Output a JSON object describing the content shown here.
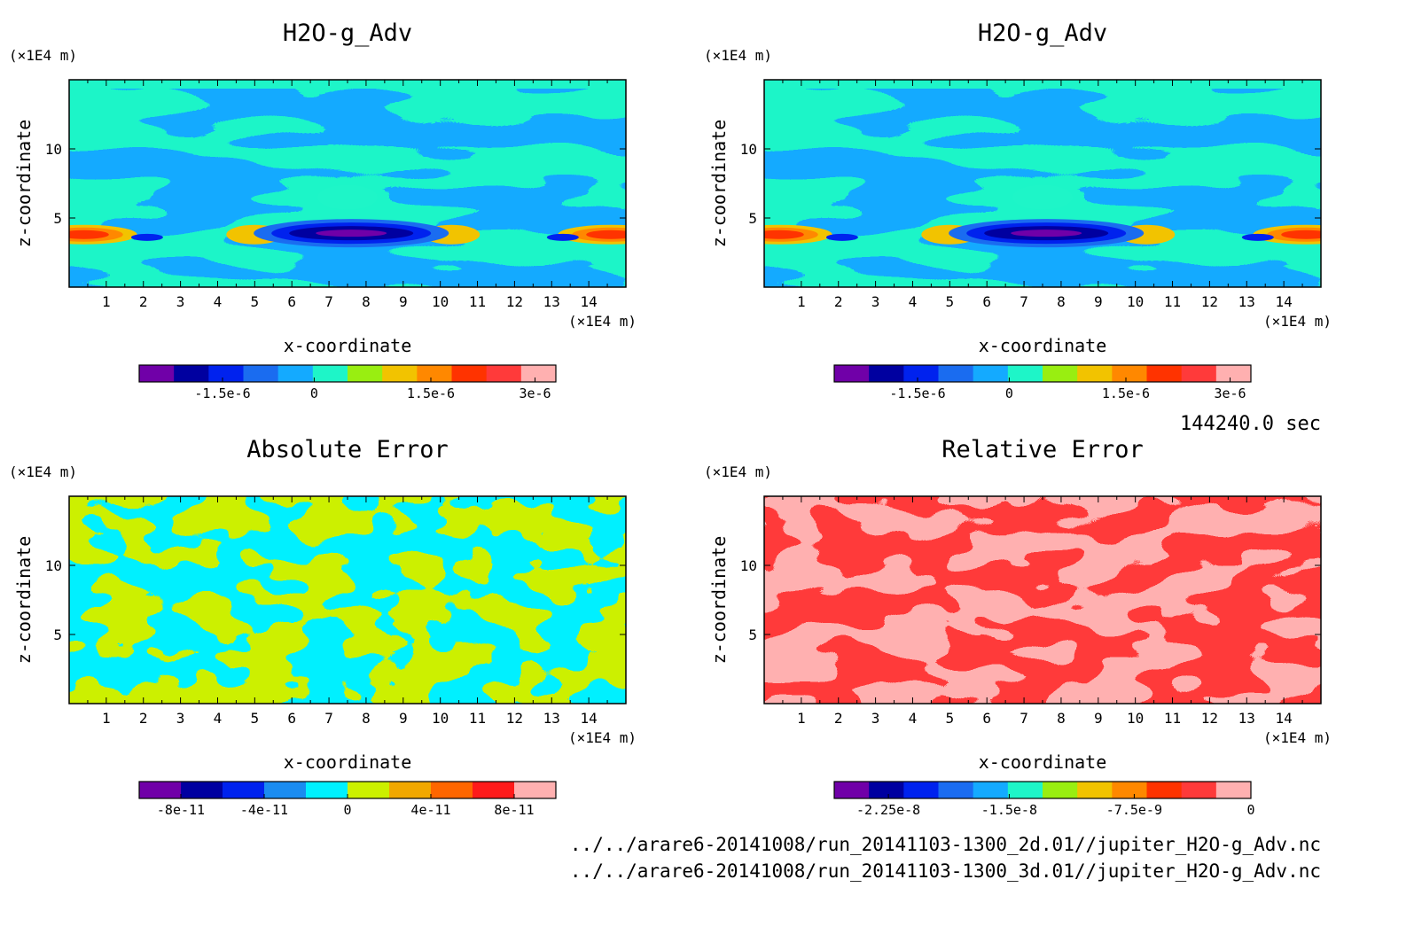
{
  "time_label": "144240.0 sec",
  "files": [
    "../../arare6-20141008/run_20141103-1300_2d.01//jupiter_H2O-g_Adv.nc",
    "../../arare6-20141008/run_20141103-1300_3d.01//jupiter_H2O-g_Adv.nc"
  ],
  "chart_data": [
    {
      "type": "heatmap",
      "title": "H2O-g_Adv",
      "xlabel": "x-coordinate",
      "ylabel": "z-coordinate",
      "x_unit": "(×1E4 m)",
      "y_unit": "(×1E4 m)",
      "xlim": [
        0,
        15
      ],
      "ylim": [
        0,
        15
      ],
      "xticks": [
        1,
        2,
        3,
        4,
        5,
        6,
        7,
        8,
        9,
        10,
        11,
        12,
        13,
        14
      ],
      "yticks": [
        5,
        10
      ],
      "colorbar": {
        "colors": [
          "#7000a8",
          "#0000a0",
          "#0022ee",
          "#1a6cf0",
          "#14aaff",
          "#1ef5c8",
          "#99ee11",
          "#f2c300",
          "#ff8800",
          "#ff3300",
          "#ff3a3a",
          "#ffb0b0"
        ],
        "tick_labels": [
          "-1.5e-6",
          "0",
          "1.5e-6",
          "3e-6"
        ]
      }
    },
    {
      "type": "heatmap",
      "title": "H2O-g_Adv",
      "xlabel": "x-coordinate",
      "ylabel": "z-coordinate",
      "x_unit": "(×1E4 m)",
      "y_unit": "(×1E4 m)",
      "xlim": [
        0,
        15
      ],
      "ylim": [
        0,
        15
      ],
      "xticks": [
        1,
        2,
        3,
        4,
        5,
        6,
        7,
        8,
        9,
        10,
        11,
        12,
        13,
        14
      ],
      "yticks": [
        5,
        10
      ],
      "colorbar": {
        "colors": [
          "#7000a8",
          "#0000a0",
          "#0022ee",
          "#1a6cf0",
          "#14aaff",
          "#1ef5c8",
          "#99ee11",
          "#f2c300",
          "#ff8800",
          "#ff3300",
          "#ff3a3a",
          "#ffb0b0"
        ],
        "tick_labels": [
          "-1.5e-6",
          "0",
          "1.5e-6",
          "3e-6"
        ]
      }
    },
    {
      "type": "heatmap",
      "title": "Absolute Error",
      "xlabel": "x-coordinate",
      "ylabel": "z-coordinate",
      "x_unit": "(×1E4 m)",
      "y_unit": "(×1E4 m)",
      "xlim": [
        0,
        15
      ],
      "ylim": [
        0,
        15
      ],
      "xticks": [
        1,
        2,
        3,
        4,
        5,
        6,
        7,
        8,
        9,
        10,
        11,
        12,
        13,
        14
      ],
      "yticks": [
        5,
        10
      ],
      "colorbar": {
        "colors": [
          "#7000a8",
          "#0000a0",
          "#0022ee",
          "#1a8cf0",
          "#00f0ff",
          "#ccf000",
          "#f2a800",
          "#ff6600",
          "#ff1a1a",
          "#ffb0b0"
        ],
        "tick_labels": [
          "-8e-11",
          "-4e-11",
          "0",
          "4e-11",
          "8e-11"
        ]
      }
    },
    {
      "type": "heatmap",
      "title": "Relative Error",
      "xlabel": "x-coordinate",
      "ylabel": "z-coordinate",
      "x_unit": "(×1E4 m)",
      "y_unit": "(×1E4 m)",
      "xlim": [
        0,
        15
      ],
      "ylim": [
        0,
        15
      ],
      "xticks": [
        1,
        2,
        3,
        4,
        5,
        6,
        7,
        8,
        9,
        10,
        11,
        12,
        13,
        14
      ],
      "yticks": [
        5,
        10
      ],
      "colorbar": {
        "colors": [
          "#7000a8",
          "#0000a0",
          "#0022ee",
          "#1a6cf0",
          "#14aaff",
          "#1ef5c8",
          "#99ee11",
          "#f2c300",
          "#ff8800",
          "#ff3300",
          "#ff3a3a",
          "#ffb0b0"
        ],
        "tick_labels": [
          "-2.25e-8",
          "-1.5e-8",
          "-7.5e-9",
          "0"
        ]
      }
    }
  ]
}
